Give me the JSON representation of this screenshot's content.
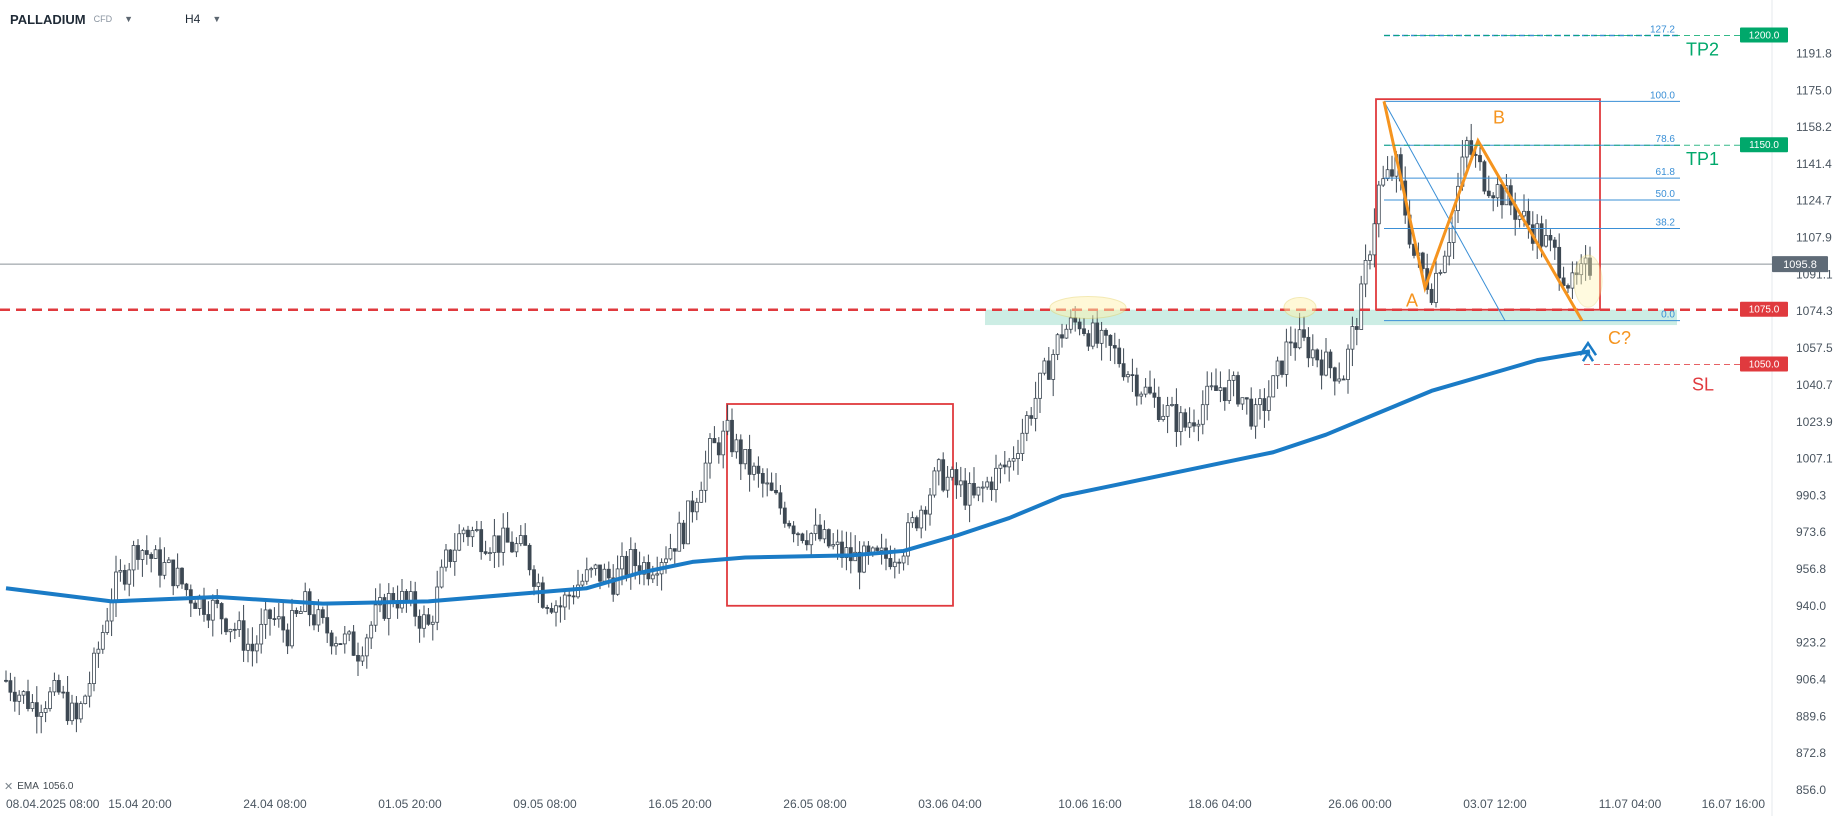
{
  "header": {
    "symbol": "PALLADIUM",
    "symbol_type": "CFD",
    "timeframe": "H4"
  },
  "indicator_legend": {
    "label": "EMA",
    "value": "1056.0"
  },
  "colors": {
    "background": "#ffffff",
    "candle": "#3d4853",
    "ema": "#1a7bc6",
    "red_box": "#e03a3e",
    "orange_pattern": "#f5941f",
    "fib": "#3a8fd6",
    "support_zone": "#bfe9dd",
    "target_green": "#00a86b",
    "stop_red": "#e03a3e",
    "current_price_tag": "#5f6b77"
  },
  "chart_data": {
    "type": "candlestick",
    "timeframe": "H4",
    "ylim": [
      856.0,
      1208.0
    ],
    "y_ticks": [
      "1191.8",
      "1175.0",
      "1158.2",
      "1141.4",
      "1124.7",
      "1107.9",
      "1091.1",
      "1074.3",
      "1057.5",
      "1040.7",
      "1023.9",
      "1007.1",
      "990.3",
      "973.6",
      "956.8",
      "940.0",
      "923.2",
      "906.4",
      "889.6",
      "872.8",
      "856.0"
    ],
    "x_ticks": [
      "08.04.2025  08:00",
      "15.04  20:00",
      "24.04  08:00",
      "01.05  20:00",
      "09.05  08:00",
      "16.05  20:00",
      "26.05  08:00",
      "03.06  04:00",
      "10.06  16:00",
      "18.06  04:00",
      "26.06  00:00",
      "03.07  12:00",
      "11.07  04:00",
      "16.07  16:00"
    ],
    "current_price": "1095.8",
    "price_path_close": [
      [
        0,
        906
      ],
      [
        3,
        895
      ],
      [
        6,
        900
      ],
      [
        8,
        887
      ],
      [
        10,
        912
      ],
      [
        12,
        945
      ],
      [
        15,
        968
      ],
      [
        17,
        960
      ],
      [
        19,
        955
      ],
      [
        21,
        945
      ],
      [
        24,
        938
      ],
      [
        26,
        930
      ],
      [
        28,
        920
      ],
      [
        30,
        935
      ],
      [
        32,
        928
      ],
      [
        34,
        940
      ],
      [
        36,
        930
      ],
      [
        38,
        925
      ],
      [
        40,
        920
      ],
      [
        42,
        935
      ],
      [
        44,
        945
      ],
      [
        46,
        940
      ],
      [
        48,
        930
      ],
      [
        50,
        960
      ],
      [
        52,
        975
      ],
      [
        55,
        970
      ],
      [
        57,
        968
      ],
      [
        59,
        965
      ],
      [
        61,
        945
      ],
      [
        63,
        940
      ],
      [
        65,
        950
      ],
      [
        67,
        955
      ],
      [
        69,
        952
      ],
      [
        71,
        960
      ],
      [
        73,
        958
      ],
      [
        75,
        965
      ],
      [
        77,
        975
      ],
      [
        80,
        1010
      ],
      [
        82,
        1018
      ],
      [
        84,
        1005
      ],
      [
        86,
        995
      ],
      [
        88,
        985
      ],
      [
        90,
        975
      ],
      [
        92,
        972
      ],
      [
        94,
        966
      ],
      [
        96,
        962
      ],
      [
        98,
        960
      ],
      [
        100,
        962
      ],
      [
        102,
        968
      ],
      [
        104,
        985
      ],
      [
        106,
        1000
      ],
      [
        108,
        995
      ],
      [
        110,
        988
      ],
      [
        112,
        998
      ],
      [
        114,
        1005
      ],
      [
        116,
        1025
      ],
      [
        118,
        1045
      ],
      [
        120,
        1065
      ],
      [
        122,
        1070
      ],
      [
        124,
        1060
      ],
      [
        126,
        1055
      ],
      [
        128,
        1045
      ],
      [
        130,
        1035
      ],
      [
        132,
        1028
      ],
      [
        134,
        1022
      ],
      [
        136,
        1032
      ],
      [
        138,
        1040
      ],
      [
        140,
        1038
      ],
      [
        142,
        1025
      ],
      [
        144,
        1040
      ],
      [
        146,
        1062
      ],
      [
        148,
        1058
      ],
      [
        150,
        1050
      ],
      [
        152,
        1046
      ],
      [
        154,
        1080
      ],
      [
        156,
        1130
      ],
      [
        158,
        1140
      ],
      [
        160,
        1100
      ],
      [
        162,
        1085
      ],
      [
        164,
        1110
      ],
      [
        166,
        1150
      ],
      [
        168,
        1135
      ],
      [
        170,
        1128
      ],
      [
        172,
        1118
      ],
      [
        174,
        1110
      ],
      [
        176,
        1100
      ],
      [
        178,
        1085
      ],
      [
        180,
        1095
      ]
    ]
  },
  "ema_line": {
    "name": "EMA",
    "points": [
      [
        0,
        948
      ],
      [
        12,
        942
      ],
      [
        24,
        944
      ],
      [
        36,
        941
      ],
      [
        48,
        942
      ],
      [
        60,
        946
      ],
      [
        66,
        948
      ],
      [
        72,
        955
      ],
      [
        78,
        960
      ],
      [
        84,
        962
      ],
      [
        96,
        963
      ],
      [
        102,
        965
      ],
      [
        108,
        972
      ],
      [
        114,
        980
      ],
      [
        120,
        990
      ],
      [
        126,
        995
      ],
      [
        132,
        1000
      ],
      [
        138,
        1005
      ],
      [
        144,
        1010
      ],
      [
        150,
        1018
      ],
      [
        156,
        1028
      ],
      [
        162,
        1038
      ],
      [
        168,
        1045
      ],
      [
        174,
        1052
      ],
      [
        180,
        1056
      ]
    ]
  },
  "fibonacci": {
    "levels": [
      "127.2",
      "100.0",
      "78.6",
      "61.8",
      "50.0",
      "38.2",
      "0.0"
    ],
    "prices": [
      1200.0,
      1170.0,
      1150.0,
      1135.0,
      1125.0,
      1112.0,
      1070.0
    ]
  },
  "annotations": {
    "pattern_labels": [
      "A",
      "B",
      "C?"
    ],
    "targets": [
      {
        "label": "TP2",
        "price_tag": "1200.0",
        "price": 1200.0
      },
      {
        "label": "TP1",
        "price_tag": "1150.0",
        "price": 1150.0
      }
    ],
    "stop": {
      "label": "SL",
      "price_tag": "1050.0",
      "price": 1050.0
    },
    "resistance": {
      "price_tag": "1075.0",
      "price": 1075.0
    }
  }
}
